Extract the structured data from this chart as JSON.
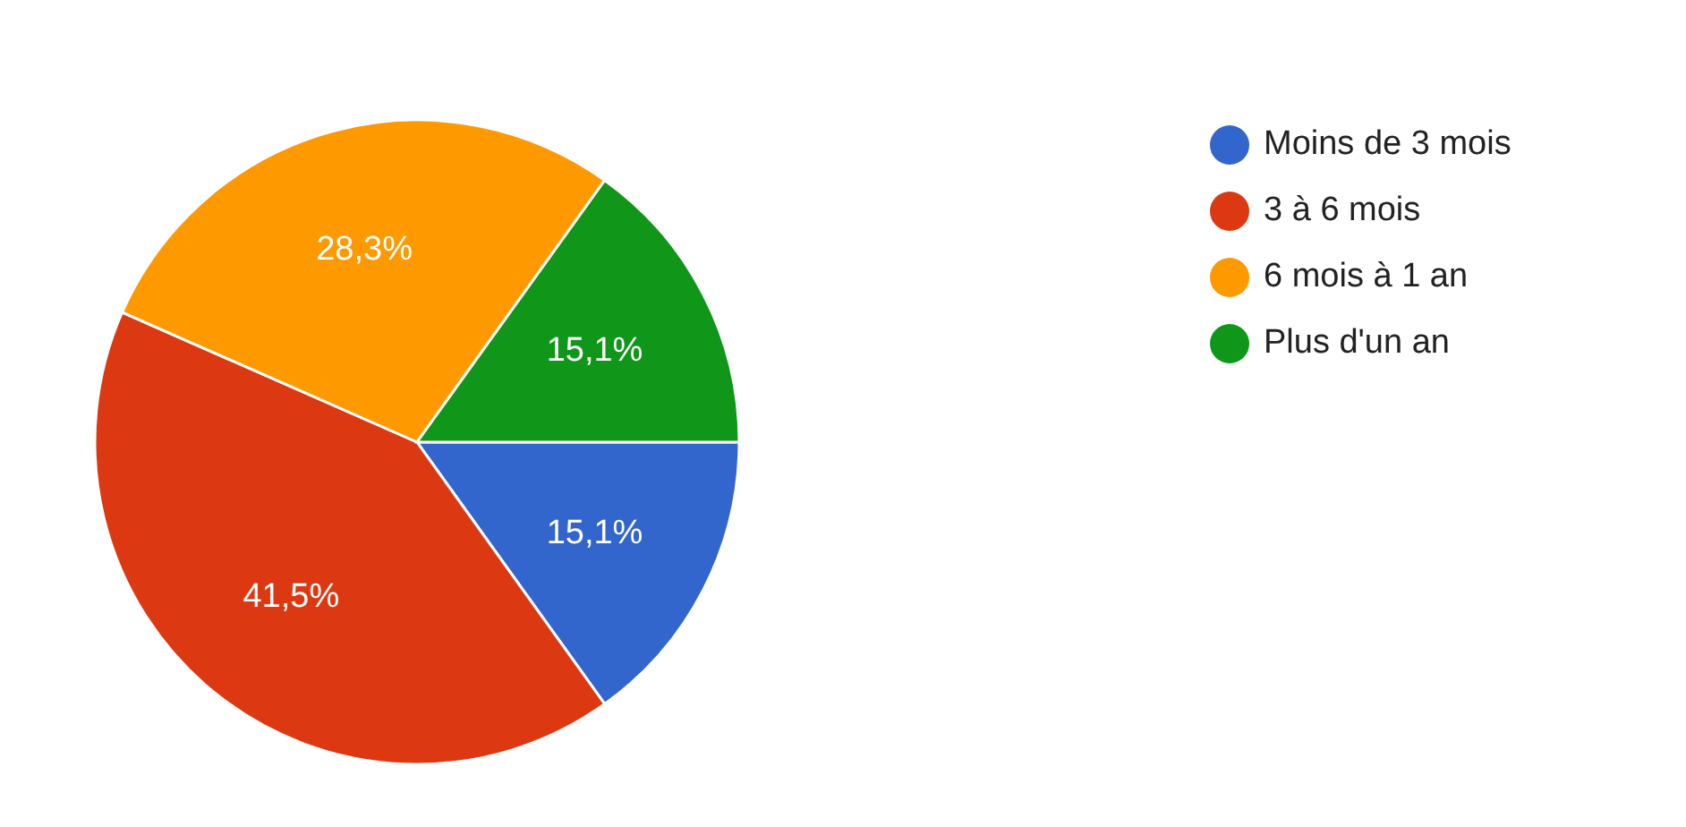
{
  "chart_data": {
    "type": "pie",
    "categories": [
      "Moins de 3 mois",
      "3 à 6 mois",
      "6 mois à 1 an",
      "Plus d'un an"
    ],
    "values": [
      15.1,
      41.5,
      28.3,
      15.1
    ],
    "value_labels": [
      "15,1%",
      "41,5%",
      "28,3%",
      "15,1%"
    ],
    "colors": [
      "#3366cc",
      "#dc3912",
      "#ff9900",
      "#109618"
    ],
    "legend": "top right"
  }
}
